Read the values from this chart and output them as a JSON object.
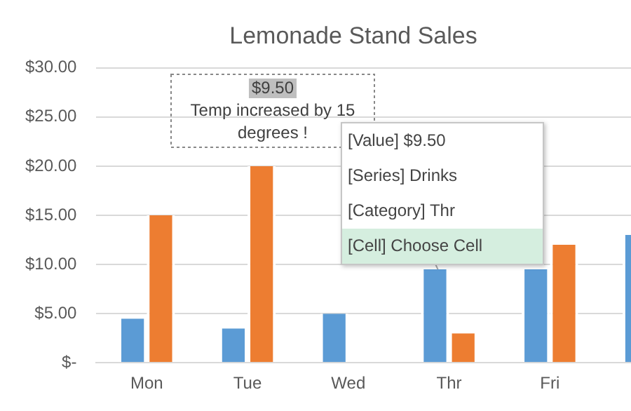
{
  "chart_data": {
    "type": "bar",
    "title": "Lemonade Stand Sales",
    "categories": [
      "Mon",
      "Tue",
      "Wed",
      "Thr",
      "Fri",
      null
    ],
    "series": [
      {
        "color": "#5b9bd5",
        "values": [
          4.5,
          3.5,
          5,
          9.5,
          9.5,
          13
        ]
      },
      {
        "color": "#ed7d31",
        "values": [
          15,
          20,
          null,
          3,
          12,
          null
        ]
      }
    ],
    "ylim": [
      0,
      30
    ],
    "yticks": [
      {
        "value": 0,
        "label": "$-"
      },
      {
        "value": 5,
        "label": "$5.00"
      },
      {
        "value": 10,
        "label": "$10.00"
      },
      {
        "value": 15,
        "label": "$15.00"
      },
      {
        "value": 20,
        "label": "$20.00"
      },
      {
        "value": 25,
        "label": "$25.00"
      },
      {
        "value": 30,
        "label": "$30.00"
      }
    ],
    "grid": "y",
    "legend": false,
    "annotations": [
      "$9.50\nTemp increased by 15\ndegrees !",
      "[Value] $9.50",
      "[Series] Drinks",
      "[Category] Thr",
      "[Cell] Choose Cell"
    ]
  }
}
